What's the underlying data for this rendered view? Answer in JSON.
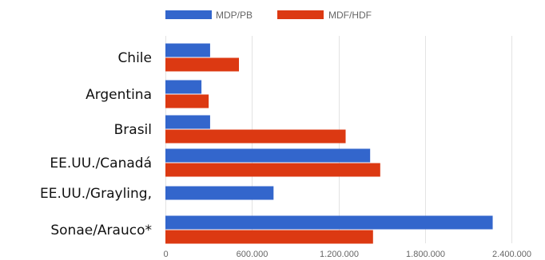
{
  "chart_data": {
    "type": "bar",
    "orientation": "horizontal",
    "title": "",
    "xlabel": "",
    "ylabel": "",
    "categories": [
      "Chile",
      "Argentina",
      "Brasil",
      "EE.UU./Canadá",
      "EE.UU./Grayling,",
      "Sonae/Arauco*"
    ],
    "series": [
      {
        "name": "MDP/PB",
        "color": "#3366cc",
        "values": [
          310000,
          250000,
          310000,
          1420000,
          750000,
          2270000
        ]
      },
      {
        "name": "MDF/HDF",
        "color": "#dc3912",
        "values": [
          510000,
          300000,
          1250000,
          1490000,
          0,
          1440000
        ]
      }
    ],
    "xlim": [
      0,
      2400000
    ],
    "xticks": [
      0,
      600000,
      1200000,
      1800000,
      2400000
    ],
    "xtick_labels": [
      "0",
      "600.000",
      "1.200.000",
      "1.800.000",
      "2.400.000"
    ],
    "grid": true,
    "legend_position": "top"
  }
}
